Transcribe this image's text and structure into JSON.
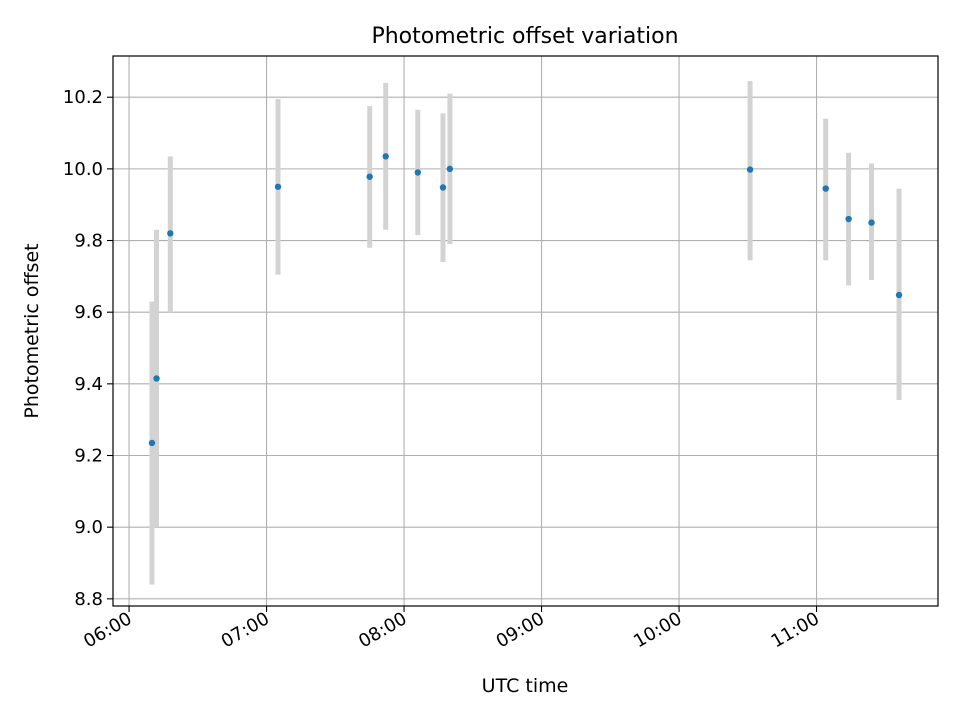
{
  "chart_data": {
    "type": "scatter",
    "title": "Photometric offset variation",
    "xlabel": "UTC time",
    "ylabel": "Photometric offset",
    "x_ticks": [
      "06:00",
      "07:00",
      "08:00",
      "09:00",
      "10:00",
      "11:00"
    ],
    "y_ticks": [
      "8.8",
      "9.0",
      "9.2",
      "9.4",
      "9.6",
      "9.8",
      "10.0",
      "10.2"
    ],
    "xlim": [
      "05:53",
      "11:53"
    ],
    "ylim": [
      8.78,
      10.315
    ],
    "grid": true,
    "points": [
      {
        "time": "06:10",
        "y": 9.235,
        "err_low": 8.84,
        "err_high": 9.63
      },
      {
        "time": "06:12",
        "y": 9.415,
        "err_low": 9.0,
        "err_high": 9.83
      },
      {
        "time": "06:18",
        "y": 9.82,
        "err_low": 9.6,
        "err_high": 10.035
      },
      {
        "time": "07:05",
        "y": 9.95,
        "err_low": 9.705,
        "err_high": 10.195
      },
      {
        "time": "07:45",
        "y": 9.978,
        "err_low": 9.78,
        "err_high": 10.175
      },
      {
        "time": "07:52",
        "y": 10.035,
        "err_low": 9.83,
        "err_high": 10.24
      },
      {
        "time": "08:06",
        "y": 9.99,
        "err_low": 9.815,
        "err_high": 10.165
      },
      {
        "time": "08:17",
        "y": 9.948,
        "err_low": 9.74,
        "err_high": 10.155
      },
      {
        "time": "08:20",
        "y": 10.0,
        "err_low": 9.79,
        "err_high": 10.21
      },
      {
        "time": "10:31",
        "y": 9.998,
        "err_low": 9.745,
        "err_high": 10.245
      },
      {
        "time": "11:04",
        "y": 9.945,
        "err_low": 9.745,
        "err_high": 10.14
      },
      {
        "time": "11:14",
        "y": 9.86,
        "err_low": 9.675,
        "err_high": 10.045
      },
      {
        "time": "11:24",
        "y": 9.85,
        "err_low": 9.69,
        "err_high": 10.015
      },
      {
        "time": "11:36",
        "y": 9.648,
        "err_low": 9.355,
        "err_high": 9.945
      }
    ],
    "colors": {
      "point": "#1f77b4",
      "errorbar": "#d3d3d3",
      "grid": "#b0b0b0"
    }
  }
}
